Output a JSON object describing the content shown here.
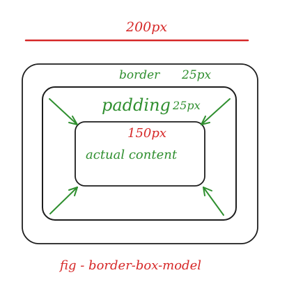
{
  "labels": {
    "width_label": "200px",
    "border_label": "border",
    "border_value": "25px",
    "padding_label": "padding",
    "padding_value": "25px",
    "content_size": "150px",
    "content_label": "actual content",
    "caption": "fig - border-box-model"
  },
  "colors": {
    "red": "#d62828",
    "green": "#2f8f2f",
    "black": "#1d1d1d"
  }
}
